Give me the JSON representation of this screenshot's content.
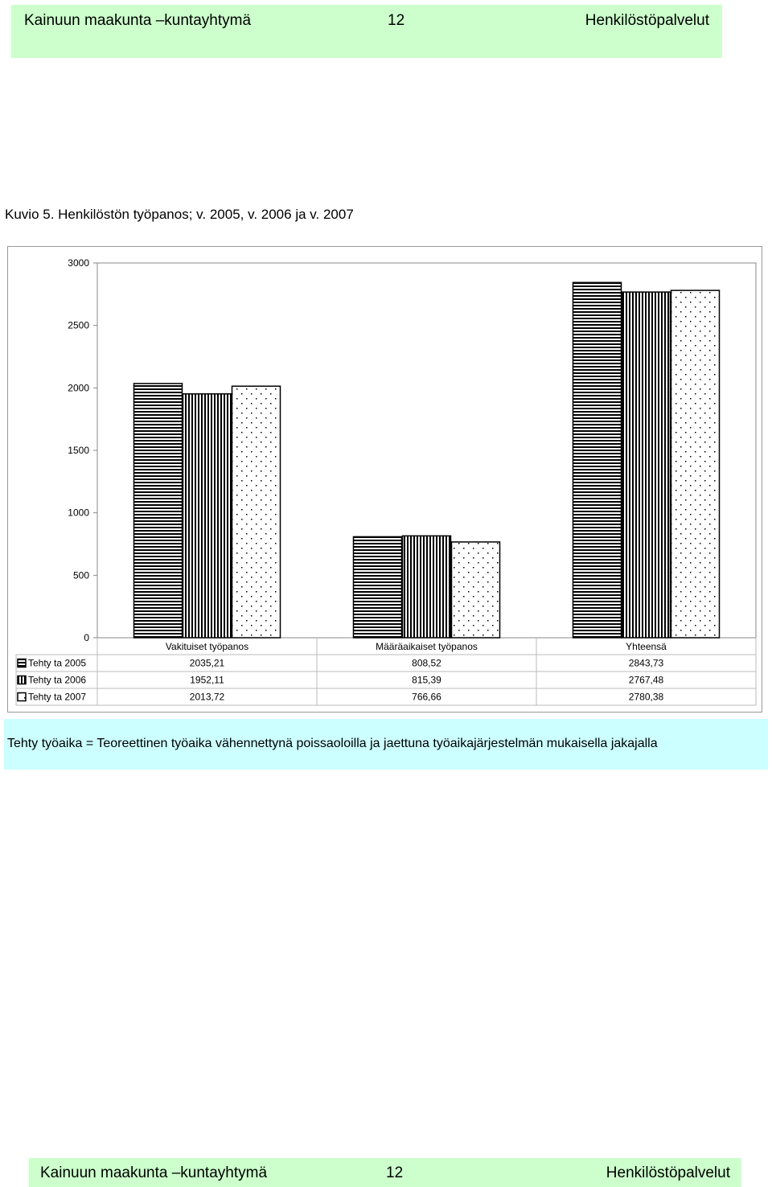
{
  "header": {
    "left": "Kainuun maakunta –kuntayhtymä",
    "page": "12",
    "right": "Henkilöstöpalvelut"
  },
  "footer": {
    "left": "Kainuun maakunta –kuntayhtymä",
    "page": "12",
    "right": "Henkilöstöpalvelut"
  },
  "caption": "Kuvio 5. Henkilöstön työpanos; v. 2005, v. 2006 ja v. 2007",
  "note": "Tehty työaika = Teoreettinen työaika vähennettynä poissaoloilla ja jaettuna työaikajärjestelmän mukaisella jakajalla",
  "colors": {
    "header_bg": "#ccffcc",
    "note_bg": "#ccffff"
  },
  "chart_data": {
    "type": "bar",
    "title": "",
    "xlabel": "",
    "ylabel": "",
    "ylim": [
      0,
      3000
    ],
    "yticks": [
      0,
      500,
      1000,
      1500,
      2000,
      2500,
      3000
    ],
    "grid": true,
    "legend": "data-table",
    "categories": [
      "Vakituiset työpanos",
      "Määräaikaiset työpanos",
      "Yhteensä"
    ],
    "series": [
      {
        "name": "Tehty ta 2005",
        "pattern": "horizontal-stripes",
        "values": [
          2035.21,
          808.52,
          2843.73
        ],
        "labels": [
          "2035,21",
          "808,52",
          "2843,73"
        ]
      },
      {
        "name": "Tehty ta 2006",
        "pattern": "vertical-stripes",
        "values": [
          1952.11,
          815.39,
          2767.48
        ],
        "labels": [
          "1952,11",
          "815,39",
          "2767,48"
        ]
      },
      {
        "name": "Tehty ta 2007",
        "pattern": "dots",
        "values": [
          2013.72,
          766.66,
          2780.38
        ],
        "labels": [
          "2013,72",
          "766,66",
          "2780,38"
        ]
      }
    ]
  }
}
